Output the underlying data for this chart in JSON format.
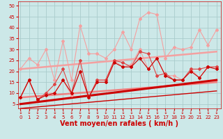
{
  "title": "",
  "xlabel": "Vent moyen/en rafales ( km/h )",
  "ylabel": "",
  "bg_color": "#cce8e8",
  "grid_color": "#aacccc",
  "x_ticks": [
    0,
    1,
    2,
    3,
    4,
    5,
    6,
    7,
    8,
    9,
    10,
    11,
    12,
    13,
    14,
    15,
    16,
    17,
    18,
    19,
    20,
    21,
    22,
    23
  ],
  "y_ticks": [
    5,
    10,
    15,
    20,
    25,
    30,
    35,
    40,
    45,
    50
  ],
  "ylim": [
    3,
    52
  ],
  "xlim": [
    -0.3,
    23.5
  ],
  "series": [
    {
      "label": "rafales_light",
      "color": "#f4a0a0",
      "linewidth": 0.8,
      "markersize": 2.0,
      "marker": "D",
      "zorder": 3,
      "data_x": [
        0,
        1,
        2,
        3,
        4,
        5,
        6,
        7,
        8,
        9,
        10,
        11,
        12,
        13,
        14,
        15,
        16,
        17,
        18,
        19,
        20,
        21,
        22,
        23
      ],
      "data_y": [
        21,
        26,
        23,
        30,
        16,
        34,
        16,
        41,
        28,
        28,
        26,
        30,
        38,
        30,
        44,
        47,
        46,
        26,
        31,
        30,
        31,
        39,
        32,
        39
      ]
    },
    {
      "label": "trend_rafales_light",
      "color": "#f4a0a0",
      "linewidth": 1.8,
      "markersize": 0,
      "marker": null,
      "zorder": 2,
      "data_x": [
        0,
        23
      ],
      "data_y": [
        21,
        29
      ]
    },
    {
      "label": "moyen_light",
      "color": "#f4a0a0",
      "linewidth": 0.8,
      "markersize": 2.0,
      "marker": "D",
      "zorder": 3,
      "data_x": [
        0,
        1,
        2,
        3,
        4,
        5,
        6,
        7,
        8,
        9,
        10,
        11,
        12,
        13,
        14,
        15,
        16,
        17,
        18,
        19,
        20,
        21,
        22,
        23
      ],
      "data_y": [
        8,
        16,
        7,
        10,
        10,
        16,
        9,
        20,
        8,
        16,
        16,
        25,
        22,
        23,
        30,
        21,
        26,
        18,
        18,
        16,
        21,
        17,
        22,
        22
      ]
    },
    {
      "label": "trend_moyen_light",
      "color": "#f08080",
      "linewidth": 1.8,
      "markersize": 0,
      "marker": null,
      "zorder": 2,
      "data_x": [
        0,
        23
      ],
      "data_y": [
        8,
        15
      ]
    },
    {
      "label": "rafales_dark",
      "color": "#dd4444",
      "linewidth": 0.8,
      "markersize": 2.0,
      "marker": "D",
      "zorder": 3,
      "data_x": [
        0,
        1,
        2,
        3,
        4,
        5,
        6,
        7,
        8,
        9,
        10,
        11,
        12,
        13,
        14,
        15,
        16,
        17,
        18,
        19,
        20,
        21,
        22,
        23
      ],
      "data_y": [
        8,
        16,
        7,
        10,
        14,
        21,
        10,
        25,
        8,
        16,
        16,
        25,
        24,
        22,
        29,
        28,
        18,
        19,
        16,
        16,
        21,
        21,
        22,
        22
      ]
    },
    {
      "label": "moyen_dark",
      "color": "#cc0000",
      "linewidth": 0.8,
      "markersize": 2.0,
      "marker": "D",
      "zorder": 3,
      "data_x": [
        0,
        1,
        2,
        3,
        4,
        5,
        6,
        7,
        8,
        9,
        10,
        11,
        12,
        13,
        14,
        15,
        16,
        17,
        18,
        19,
        20,
        21,
        22,
        23
      ],
      "data_y": [
        8,
        16,
        7,
        9,
        10,
        16,
        10,
        20,
        8,
        15,
        15,
        24,
        22,
        22,
        26,
        21,
        26,
        18,
        16,
        16,
        20,
        17,
        22,
        21
      ]
    },
    {
      "label": "trend_rafales_dark",
      "color": "#cc0000",
      "linewidth": 2.2,
      "markersize": 0,
      "marker": null,
      "zorder": 2,
      "data_x": [
        0,
        23
      ],
      "data_y": [
        5,
        16
      ]
    },
    {
      "label": "trend_moyen_dark",
      "color": "#cc0000",
      "linewidth": 1.0,
      "markersize": 0,
      "marker": null,
      "zorder": 2,
      "data_x": [
        0,
        23
      ],
      "data_y": [
        3,
        11
      ]
    }
  ],
  "xlabel_color": "#cc0000",
  "xlabel_fontsize": 7,
  "tick_fontsize": 5,
  "ytick_color": "#cc0000",
  "xtick_color": "#cc0000",
  "spine_color": "#cc0000"
}
